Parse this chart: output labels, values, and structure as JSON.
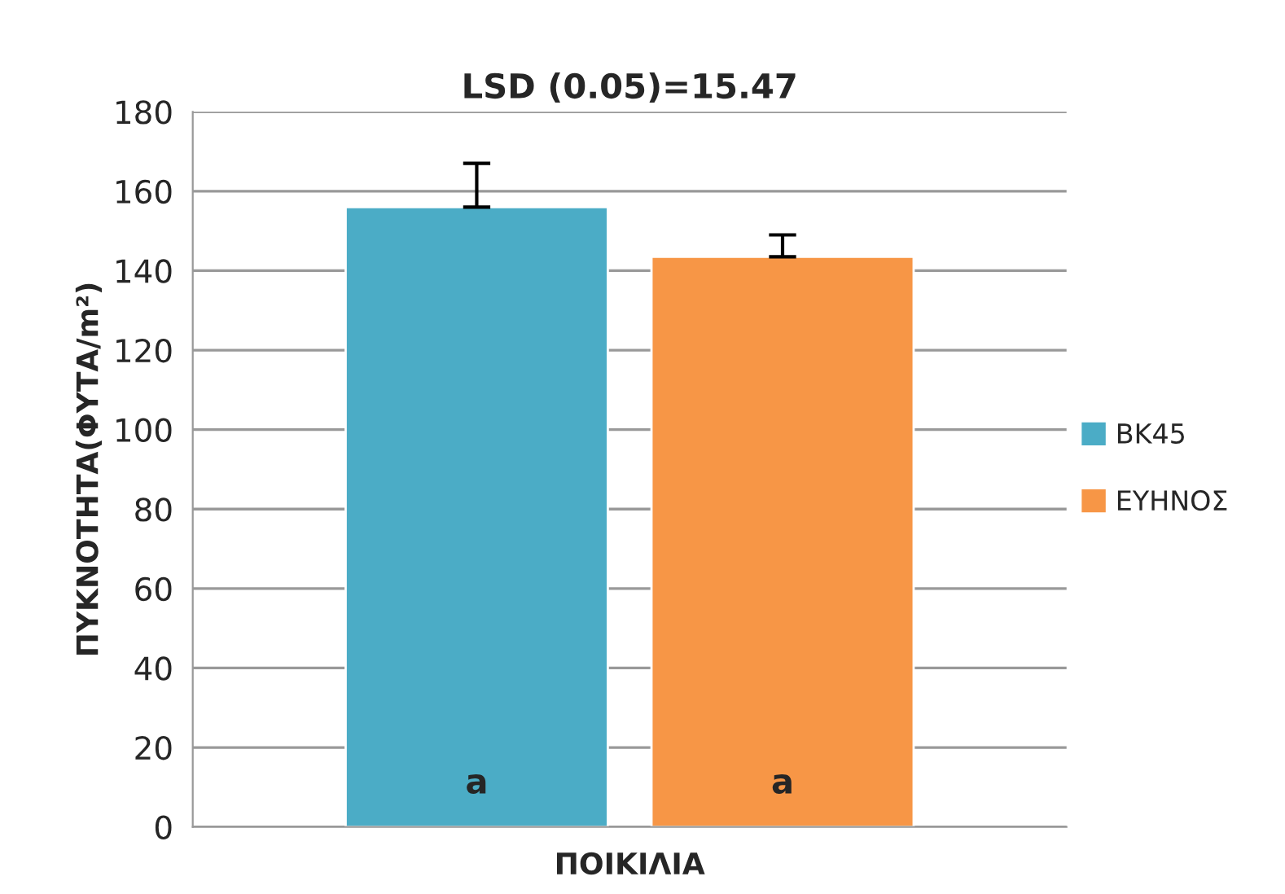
{
  "chart_data": {
    "type": "bar",
    "title": "LSD (0.05)=15.47",
    "xlabel": "ΠΟΙΚΙΛΙΑ",
    "ylabel": "ΠΥΚΝΟΤΗΤΑ(ΦΥΤΑ/m²)",
    "categories": [
      null
    ],
    "series": [
      {
        "name": "BK45",
        "color": "#4bacc6",
        "values": [
          156
        ],
        "errors": [
          [
            156,
            167
          ]
        ]
      },
      {
        "name": "ΕΥΗΝΟΣ",
        "color": "#f79646",
        "values": [
          143.5
        ],
        "errors": [
          [
            143.5,
            149
          ]
        ]
      }
    ],
    "annotations": [
      "a",
      "a"
    ],
    "ylim": [
      0,
      180
    ],
    "yticks": [
      0,
      20,
      40,
      60,
      80,
      100,
      120,
      140,
      160,
      180
    ],
    "grid": "y",
    "legend": "right"
  }
}
